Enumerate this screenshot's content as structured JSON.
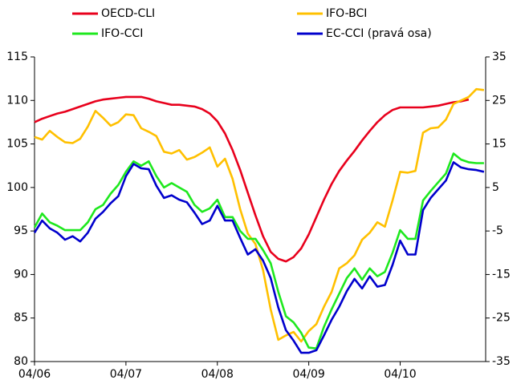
{
  "chart_data": {
    "type": "line",
    "categories": [
      "04/06",
      null,
      null,
      null,
      null,
      null,
      null,
      null,
      null,
      null,
      null,
      null,
      "04/07",
      null,
      null,
      null,
      null,
      null,
      null,
      null,
      null,
      null,
      null,
      null,
      "04/08",
      null,
      null,
      null,
      null,
      null,
      null,
      null,
      null,
      null,
      null,
      null,
      "04/09",
      null,
      null,
      null,
      null,
      null,
      null,
      null,
      null,
      null,
      null,
      null,
      "04/10",
      null,
      null,
      null,
      null,
      null,
      null,
      null,
      null,
      null,
      null,
      null
    ],
    "ylim": [
      80,
      115
    ],
    "yticks": [
      80,
      85,
      90,
      95,
      100,
      105,
      110,
      115
    ],
    "y2lim": [
      -35,
      35
    ],
    "y2ticks": [
      -35,
      -25,
      -15,
      -5,
      5,
      15,
      25,
      35
    ],
    "series": [
      {
        "name": "OECD-CLI",
        "color": "#e8001c",
        "values": [
          107.5,
          107.9,
          108.2,
          108.5,
          108.7,
          109,
          109.3,
          109.6,
          109.9,
          110.1,
          110.2,
          110.3,
          110.4,
          110.4,
          110.4,
          110.2,
          109.9,
          109.7,
          109.5,
          109.5,
          109.4,
          109.3,
          109,
          108.5,
          107.6,
          106.2,
          104.3,
          102,
          99.4,
          96.8,
          94.4,
          92.6,
          91.8,
          91.5,
          92,
          93,
          94.6,
          96.6,
          98.6,
          100.4,
          101.9,
          103.1,
          104.2,
          105.4,
          106.5,
          107.5,
          108.3,
          108.9,
          109.2,
          109.2,
          109.2,
          109.2,
          109.3,
          109.4,
          109.6,
          109.8,
          109.9,
          110.1,
          null,
          null
        ]
      },
      {
        "name": "IFO-BCI",
        "color": "#ffc000",
        "values": [
          105.8,
          105.5,
          106.5,
          105.8,
          105.2,
          105.1,
          105.6,
          107,
          108.8,
          108,
          107.1,
          107.5,
          108.4,
          108.3,
          106.8,
          106.4,
          105.9,
          104.1,
          103.9,
          104.3,
          103.2,
          103.5,
          104,
          104.6,
          102.4,
          103.3,
          101,
          97.5,
          94.7,
          93.5,
          90.5,
          86,
          82.5,
          83,
          83.4,
          82.3,
          83.5,
          84.3,
          86.3,
          88,
          90.7,
          91.3,
          92.2,
          94,
          94.8,
          96,
          95.5,
          98.5,
          101.8,
          101.7,
          101.9,
          106.3,
          106.8,
          106.9,
          107.8,
          109.6,
          110,
          110.4,
          111.3,
          111.2
        ]
      },
      {
        "name": "IFO-CCI",
        "color": "#1ee81e",
        "axis": "y2",
        "values": [
          -4.2,
          -1,
          -3,
          -3.8,
          -4.8,
          -4.8,
          -4.8,
          -3,
          0,
          1,
          3.6,
          5.6,
          8.6,
          11,
          10,
          11,
          7.6,
          5,
          6,
          5,
          4,
          1,
          -0.6,
          0.2,
          2.2,
          -1.8,
          -1.8,
          -5,
          -6.8,
          -6.8,
          -9.4,
          -12.4,
          -19,
          -24.6,
          -26,
          -28.4,
          -31.8,
          -32,
          -27,
          -23,
          -19.4,
          -15.8,
          -13.6,
          -16.2,
          -13.6,
          -15.4,
          -14.4,
          -10,
          -4.8,
          -6.8,
          -6.8,
          2,
          4.2,
          6.2,
          8.2,
          12.8,
          11.4,
          10.8,
          10.6,
          10.6
        ]
      },
      {
        "name": "EC-CCI (pravá osa)",
        "color": "#0000cc",
        "axis": "y2",
        "values": [
          -5.4,
          -2.6,
          -4.4,
          -5.4,
          -7,
          -6.2,
          -7.4,
          -5.4,
          -2.2,
          -0.6,
          1.4,
          3,
          7.6,
          10.4,
          9.4,
          9.2,
          5.4,
          2.6,
          3.2,
          2.2,
          1.6,
          -0.8,
          -3.4,
          -2.6,
          0.8,
          -2.6,
          -2.6,
          -6.6,
          -10.4,
          -9.2,
          -11.8,
          -15.8,
          -22.6,
          -27.8,
          -30.2,
          -33,
          -33,
          -32.4,
          -29,
          -25.4,
          -22.4,
          -18.8,
          -16,
          -18.2,
          -15.4,
          -17.8,
          -17.4,
          -12.8,
          -7.2,
          -10.4,
          -10.4,
          -0.2,
          2.6,
          4.6,
          6.6,
          10.8,
          9.6,
          9.2,
          9,
          8.6
        ]
      }
    ]
  }
}
